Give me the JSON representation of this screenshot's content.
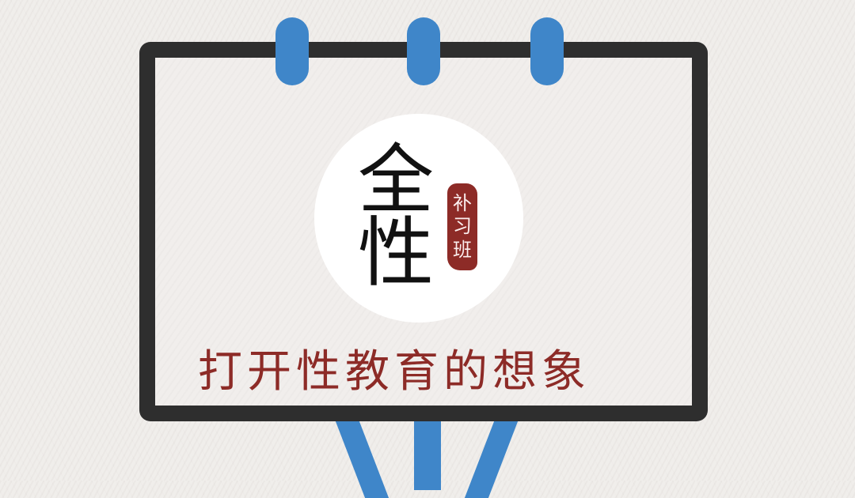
{
  "colors": {
    "background": "#f0edea",
    "frame": "#2e2e2e",
    "accent": "#3f86c9",
    "seal": "#8d2b27",
    "slogan": "#8d2b27"
  },
  "icons": {
    "easel": "easel-icon",
    "rings": "binder-ring-icon"
  },
  "logo": {
    "characters": [
      "全",
      "性"
    ],
    "seal_characters": [
      "补",
      "习",
      "班"
    ]
  },
  "slogan": "打开性教育的想象"
}
